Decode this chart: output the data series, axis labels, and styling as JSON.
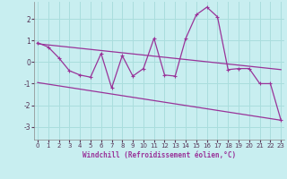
{
  "xlabel": "Windchill (Refroidissement éolien,°C)",
  "background_color": "#c8eef0",
  "grid_color": "#aadddd",
  "line_color": "#993399",
  "hours": [
    0,
    1,
    2,
    3,
    4,
    5,
    6,
    7,
    8,
    9,
    10,
    11,
    12,
    13,
    14,
    15,
    16,
    17,
    18,
    19,
    20,
    21,
    22,
    23
  ],
  "windchill": [
    0.9,
    0.7,
    0.2,
    -0.4,
    -0.6,
    -0.7,
    0.4,
    -1.2,
    0.3,
    -0.65,
    -0.3,
    1.1,
    -0.6,
    -0.65,
    1.1,
    2.2,
    2.55,
    2.1,
    -0.35,
    -0.3,
    -0.3,
    -1.0,
    -1.0,
    -2.7
  ],
  "reg1_y0": 0.85,
  "reg1_y1": -0.35,
  "reg2_y0": -0.95,
  "reg2_y1": -2.7,
  "ylim": [
    -3.6,
    2.8
  ],
  "yticks": [
    -3,
    -2,
    -1,
    0,
    1,
    2
  ],
  "xlim": [
    -0.3,
    23.3
  ],
  "xticks": [
    0,
    1,
    2,
    3,
    4,
    5,
    6,
    7,
    8,
    9,
    10,
    11,
    12,
    13,
    14,
    15,
    16,
    17,
    18,
    19,
    20,
    21,
    22,
    23
  ]
}
